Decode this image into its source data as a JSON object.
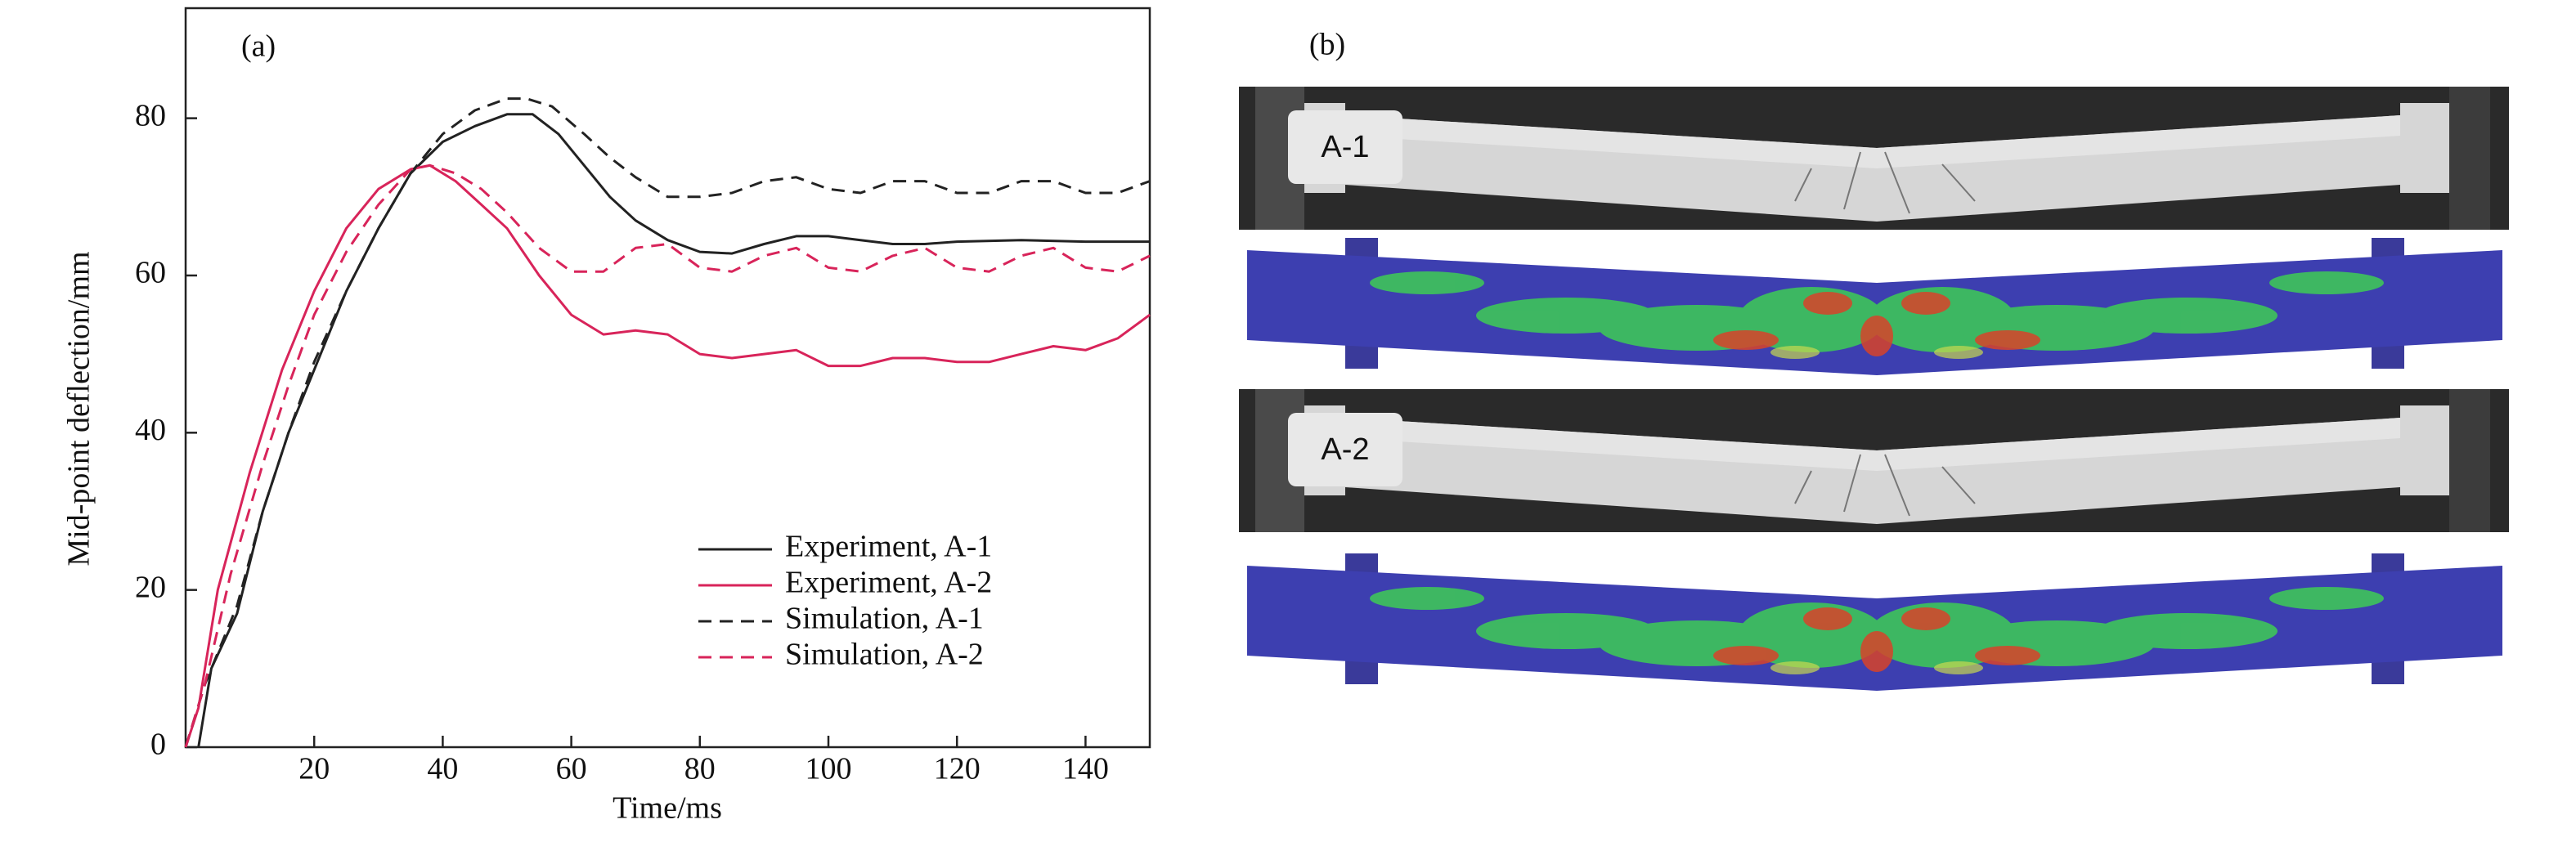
{
  "chart_data": {
    "type": "line",
    "panel_label": "(a)",
    "x_label": "Time/ms",
    "y_label": "Mid-point deflection/mm",
    "xlim": [
      0,
      150
    ],
    "ylim": [
      0,
      94
    ],
    "xticks": [
      20,
      40,
      60,
      80,
      100,
      120,
      140
    ],
    "yticks": [
      0,
      20,
      40,
      60,
      80
    ],
    "legend": "lower right",
    "series": [
      {
        "name": "Experiment, A-1",
        "color": "#222222",
        "linestyle": "solid",
        "x": [
          2,
          4,
          8,
          12,
          16,
          20,
          25,
          30,
          35,
          40,
          45,
          50,
          54,
          58,
          62,
          66,
          70,
          75,
          80,
          85,
          90,
          95,
          100,
          105,
          110,
          115,
          120,
          130,
          140,
          150
        ],
        "values": [
          0,
          10,
          17,
          30,
          40,
          48,
          58,
          66,
          73,
          77,
          79,
          80.5,
          80.5,
          78,
          74,
          70,
          67,
          64.5,
          63,
          62.8,
          64,
          65,
          65,
          64.5,
          64,
          64,
          64.3,
          64.5,
          64.3,
          64.3
        ]
      },
      {
        "name": "Experiment, A-2",
        "color": "#d8245a",
        "linestyle": "solid",
        "x": [
          0,
          2,
          5,
          10,
          15,
          20,
          25,
          30,
          35,
          38,
          42,
          46,
          50,
          55,
          60,
          65,
          70,
          75,
          80,
          85,
          90,
          95,
          100,
          105,
          110,
          115,
          120,
          125,
          130,
          135,
          140,
          145,
          150
        ],
        "values": [
          0,
          5,
          20,
          35,
          48,
          58,
          66,
          71,
          73.5,
          74,
          72,
          69,
          66,
          60,
          55,
          52.5,
          53,
          52.5,
          50,
          49.5,
          50,
          50.5,
          48.5,
          48.5,
          49.5,
          49.5,
          49,
          49,
          50,
          51,
          50.5,
          52,
          55
        ]
      },
      {
        "name": "Simulation, A-1",
        "color": "#222222",
        "linestyle": "dashed",
        "x": [
          0,
          3,
          8,
          12,
          16,
          20,
          25,
          30,
          35,
          40,
          45,
          50,
          53,
          57,
          62,
          66,
          70,
          75,
          80,
          85,
          90,
          95,
          100,
          105,
          110,
          115,
          120,
          125,
          130,
          135,
          140,
          145,
          150
        ],
        "values": [
          0,
          8,
          18,
          30,
          40,
          49,
          58,
          66,
          73,
          78,
          81,
          82.5,
          82.5,
          81.5,
          78,
          75,
          72.5,
          70,
          70,
          70.5,
          72,
          72.5,
          71,
          70.5,
          72,
          72,
          70.5,
          70.5,
          72,
          72,
          70.5,
          70.5,
          72
        ]
      },
      {
        "name": "Simulation, A-2",
        "color": "#d8245a",
        "linestyle": "dashed",
        "x": [
          0,
          3,
          7,
          12,
          16,
          20,
          25,
          30,
          35,
          38,
          42,
          46,
          50,
          55,
          60,
          65,
          70,
          75,
          80,
          85,
          90,
          95,
          100,
          105,
          110,
          115,
          120,
          125,
          130,
          135,
          140,
          145,
          150
        ],
        "values": [
          0,
          8,
          22,
          36,
          46,
          55,
          63,
          69,
          73.5,
          74,
          73,
          71,
          68,
          63.5,
          60.5,
          60.5,
          63.5,
          64,
          61,
          60.5,
          62.5,
          63.5,
          61,
          60.5,
          62.5,
          63.5,
          61,
          60.5,
          62.5,
          63.5,
          61,
          60.5,
          62.5
        ]
      }
    ]
  },
  "panel_b": {
    "label": "(b)",
    "beams": [
      "A-1",
      "A-2"
    ]
  }
}
